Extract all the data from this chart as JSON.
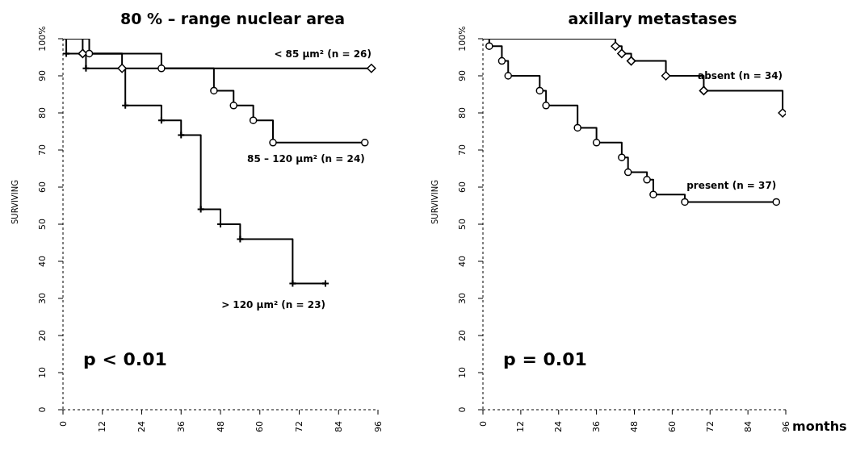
{
  "chart_data": [
    {
      "type": "step",
      "title": "80 % – range nuclear area",
      "ylabel": "SURVIVING",
      "xlim": [
        0,
        96
      ],
      "ylim": [
        0,
        100
      ],
      "xticks": [
        0,
        12,
        24,
        36,
        48,
        60,
        72,
        84,
        96
      ],
      "yticks": [
        0,
        10,
        20,
        30,
        40,
        50,
        60,
        70,
        80,
        90,
        {
          "value": 100,
          "label": "100%"
        }
      ],
      "line_style": "solid",
      "legend": false,
      "annotations": [
        "p < 0.01"
      ],
      "series": [
        {
          "name": "< 85 µm² (n = 26)",
          "color": "#000000",
          "marker": "diamond",
          "x": [
            0,
            6,
            18,
            94
          ],
          "values": [
            100,
            96,
            92,
            92
          ]
        },
        {
          "name": "85 – 120 µm² (n = 24)",
          "color": "#000000",
          "marker": "circle",
          "x": [
            0,
            8,
            30,
            46,
            52,
            58,
            64,
            92
          ],
          "values": [
            100,
            96,
            92,
            86,
            82,
            78,
            72,
            72
          ]
        },
        {
          "name": "> 120 µm² (n = 23)",
          "color": "#000000",
          "marker": "cross",
          "x": [
            0,
            1,
            7,
            19,
            30,
            36,
            42,
            48,
            54,
            70,
            80
          ],
          "values": [
            100,
            96,
            92,
            82,
            78,
            74,
            54,
            50,
            46,
            34,
            34
          ]
        }
      ]
    },
    {
      "type": "step",
      "title": "axillary metastases",
      "ylabel": "SURVIVING",
      "xlabel": "months",
      "xlim": [
        0,
        96
      ],
      "ylim": [
        0,
        100
      ],
      "xticks": [
        0,
        12,
        24,
        36,
        48,
        60,
        72,
        84,
        96
      ],
      "yticks": [
        0,
        10,
        20,
        30,
        40,
        50,
        60,
        70,
        80,
        90,
        {
          "value": 100,
          "label": "100%"
        }
      ],
      "line_style": "solid",
      "legend": false,
      "annotations": [
        "p = 0.01"
      ],
      "series": [
        {
          "name": "absent (n = 34)",
          "color": "#000000",
          "marker": "diamond",
          "x": [
            0,
            42,
            44,
            47,
            58,
            70,
            95
          ],
          "values": [
            100,
            98,
            96,
            94,
            90,
            86,
            80
          ]
        },
        {
          "name": "present (n = 37)",
          "color": "#000000",
          "marker": "circle",
          "x": [
            0,
            2,
            6,
            8,
            18,
            20,
            30,
            36,
            44,
            46,
            52,
            54,
            64,
            93
          ],
          "values": [
            100,
            98,
            94,
            90,
            86,
            82,
            76,
            72,
            68,
            64,
            62,
            58,
            56,
            56
          ]
        }
      ]
    }
  ]
}
